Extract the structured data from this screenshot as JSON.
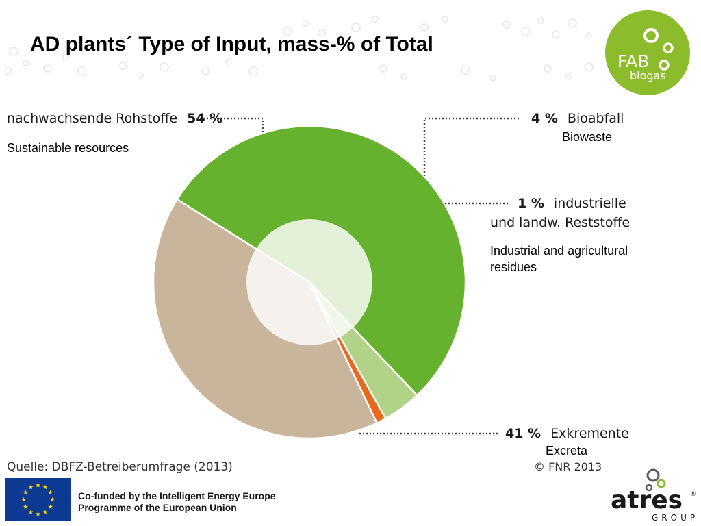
{
  "title": "AD plants´ Type of Input, mass-% of Total",
  "logo": {
    "line1": "FAB",
    "line2": "biogas"
  },
  "chart_data": {
    "type": "pie",
    "donut_inner_highlight": true,
    "slices": [
      {
        "label_de": "nachwachsende Rohstoffe",
        "label_en": "Sustainable resources",
        "percent_text": "54 %",
        "value": 54,
        "color": "#66b22f"
      },
      {
        "label_de": "Bioabfall",
        "label_en": "Biowaste",
        "percent_text": "4 %",
        "value": 4,
        "color": "#b1d287"
      },
      {
        "label_de": "industrielle",
        "label_de_line2": "und landw. Reststoffe",
        "label_en": "Industrial and agricultural",
        "label_en_line2": "residues",
        "percent_text": "1 %",
        "value": 1,
        "color": "#e56a1c"
      },
      {
        "label_de": "Exkremente",
        "label_en": "Excreta",
        "percent_text": "41 %",
        "value": 41,
        "color": "#c9b49c"
      }
    ]
  },
  "source": "Quelle: DBFZ-Betreiberumfrage (2013)",
  "copyright": "© FNR 2013",
  "footer": {
    "cofunded_line1": "Co-funded by the Intelligent Energy Europe",
    "cofunded_line2": "Programme of the European Union"
  },
  "atres": {
    "name": "atres",
    "registered": "®",
    "group": "GROUP"
  }
}
